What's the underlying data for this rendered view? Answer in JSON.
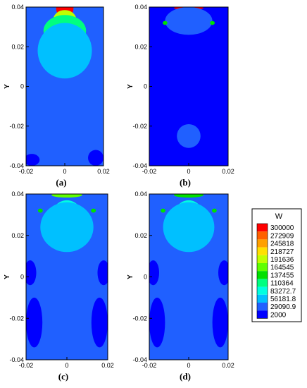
{
  "chart_data": [
    {
      "type": "heatmap",
      "label": "(a)",
      "xlim": [
        -0.02,
        0.02
      ],
      "ylim": [
        -0.04,
        0.04
      ],
      "xticks": [
        "-0.02",
        "0",
        "0.02"
      ],
      "yticks": [
        "0.04",
        "0.02",
        "0",
        "-0.02",
        "-0.04"
      ],
      "ylabel": "Y",
      "field": {
        "background": 29090.9,
        "hotspots": [
          {
            "x": 0.0,
            "y": 0.0395,
            "rx": 0.0045,
            "ry": 0.005,
            "value": 300000
          },
          {
            "x": 0.0,
            "y": 0.0335,
            "rx": 0.006,
            "ry": 0.005,
            "value": 191636
          },
          {
            "x": 0.0,
            "y": 0.028,
            "rx": 0.011,
            "ry": 0.008,
            "value": 110364
          },
          {
            "x": 0.0,
            "y": 0.018,
            "rx": 0.014,
            "ry": 0.014,
            "value": 56181.8
          },
          {
            "x": 0.0,
            "y": -0.015,
            "rx": 0.009,
            "ry": 0.018,
            "value": 29090.9
          },
          {
            "x": -0.017,
            "y": -0.037,
            "rx": 0.004,
            "ry": 0.003,
            "value": 2000
          },
          {
            "x": 0.016,
            "y": -0.036,
            "rx": 0.004,
            "ry": 0.004,
            "value": 2000
          }
        ]
      }
    },
    {
      "type": "heatmap",
      "label": "(b)",
      "xlim": [
        -0.02,
        0.02
      ],
      "ylim": [
        -0.04,
        0.04
      ],
      "xticks": [
        "-0.02",
        "0",
        "0.02"
      ],
      "yticks": [
        "0.04",
        "0.02",
        "0",
        "-0.02",
        "-0.04"
      ],
      "ylabel": "Y",
      "field": {
        "background": 2000,
        "hotspots": [
          {
            "x": 0.0,
            "y": 0.0395,
            "rx": 0.0075,
            "ry": 0.0008,
            "value": 300000
          },
          {
            "x": 0.0,
            "y": 0.033,
            "rx": 0.012,
            "ry": 0.007,
            "value": 29090.9
          },
          {
            "x": -0.012,
            "y": 0.032,
            "rx": 0.0012,
            "ry": 0.001,
            "value": 137455
          },
          {
            "x": 0.012,
            "y": 0.032,
            "rx": 0.0012,
            "ry": 0.001,
            "value": 137455
          },
          {
            "x": 0.0,
            "y": -0.025,
            "rx": 0.006,
            "ry": 0.006,
            "value": 29090.9
          }
        ]
      }
    },
    {
      "type": "heatmap",
      "label": "(c)",
      "xlim": [
        -0.02,
        0.02
      ],
      "ylim": [
        -0.04,
        0.04
      ],
      "xticks": [
        "-0.02",
        "0",
        "0.02"
      ],
      "yticks": [
        "0.04",
        "0.02",
        "0",
        "-0.02",
        "-0.04"
      ],
      "ylabel": "Y",
      "field": {
        "background": 29090.9,
        "hotspots": [
          {
            "x": 0.0,
            "y": 0.0395,
            "rx": 0.0075,
            "ry": 0.0012,
            "value": 164545
          },
          {
            "x": 0.0,
            "y": 0.033,
            "rx": 0.0009,
            "ry": 0.0015,
            "value": 300000
          },
          {
            "x": 0.0,
            "y": 0.032,
            "rx": 0.0035,
            "ry": 0.004,
            "value": 164545
          },
          {
            "x": 0.0,
            "y": 0.028,
            "rx": 0.008,
            "ry": 0.009,
            "value": 83272.7
          },
          {
            "x": 0.0,
            "y": 0.024,
            "rx": 0.013,
            "ry": 0.012,
            "value": 56181.8
          },
          {
            "x": -0.013,
            "y": 0.032,
            "rx": 0.0012,
            "ry": 0.001,
            "value": 137455
          },
          {
            "x": 0.013,
            "y": 0.032,
            "rx": 0.0012,
            "ry": 0.001,
            "value": 137455
          },
          {
            "x": -0.018,
            "y": 0.002,
            "rx": 0.003,
            "ry": 0.006,
            "value": 2000
          },
          {
            "x": 0.018,
            "y": 0.002,
            "rx": 0.003,
            "ry": 0.006,
            "value": 2000
          },
          {
            "x": -0.016,
            "y": -0.022,
            "rx": 0.004,
            "ry": 0.012,
            "value": 2000
          },
          {
            "x": 0.016,
            "y": -0.022,
            "rx": 0.004,
            "ry": 0.012,
            "value": 2000
          }
        ]
      }
    },
    {
      "type": "heatmap",
      "label": "(d)",
      "xlim": [
        -0.02,
        0.02
      ],
      "ylim": [
        -0.04,
        0.04
      ],
      "xticks": [
        "-0.02",
        "0",
        "0.02"
      ],
      "yticks": [
        "0.04",
        "0.02",
        "0",
        "-0.02",
        "-0.04"
      ],
      "ylabel": "Y",
      "field": {
        "background": 29090.9,
        "hotspots": [
          {
            "x": 0.0,
            "y": 0.0395,
            "rx": 0.0075,
            "ry": 0.0012,
            "value": 137455
          },
          {
            "x": 0.0,
            "y": 0.0335,
            "rx": 0.0012,
            "ry": 0.0015,
            "value": 300000
          },
          {
            "x": 0.0,
            "y": 0.032,
            "rx": 0.004,
            "ry": 0.004,
            "value": 164545
          },
          {
            "x": 0.0,
            "y": 0.028,
            "rx": 0.008,
            "ry": 0.009,
            "value": 83272.7
          },
          {
            "x": 0.0,
            "y": 0.024,
            "rx": 0.013,
            "ry": 0.012,
            "value": 56181.8
          },
          {
            "x": -0.013,
            "y": 0.032,
            "rx": 0.0012,
            "ry": 0.001,
            "value": 137455
          },
          {
            "x": 0.013,
            "y": 0.032,
            "rx": 0.0012,
            "ry": 0.001,
            "value": 137455
          },
          {
            "x": -0.018,
            "y": 0.002,
            "rx": 0.003,
            "ry": 0.006,
            "value": 2000
          },
          {
            "x": 0.018,
            "y": 0.002,
            "rx": 0.003,
            "ry": 0.006,
            "value": 2000
          },
          {
            "x": -0.016,
            "y": -0.022,
            "rx": 0.004,
            "ry": 0.012,
            "value": 2000
          },
          {
            "x": 0.016,
            "y": -0.022,
            "rx": 0.004,
            "ry": 0.012,
            "value": 2000
          }
        ]
      }
    }
  ],
  "legend": {
    "title": "W",
    "levels": [
      {
        "label": "300000",
        "value": 300000,
        "color": "#ff0000"
      },
      {
        "label": "272909",
        "value": 272909,
        "color": "#ff6000"
      },
      {
        "label": "245818",
        "value": 245818,
        "color": "#ffa000"
      },
      {
        "label": "218727",
        "value": 218727,
        "color": "#ffe000"
      },
      {
        "label": "191636",
        "value": 191636,
        "color": "#c0ff00"
      },
      {
        "label": "164545",
        "value": 164545,
        "color": "#60ff00"
      },
      {
        "label": "137455",
        "value": 137455,
        "color": "#00e000"
      },
      {
        "label": "110364",
        "value": 110364,
        "color": "#00ff80"
      },
      {
        "label": "83272.7",
        "value": 83272.7,
        "color": "#00ffe0"
      },
      {
        "label": "56181.8",
        "value": 56181.8,
        "color": "#00c0ff"
      },
      {
        "label": "29090.9",
        "value": 29090.9,
        "color": "#2060ff"
      },
      {
        "label": "2000",
        "value": 2000,
        "color": "#0000ff"
      }
    ]
  }
}
